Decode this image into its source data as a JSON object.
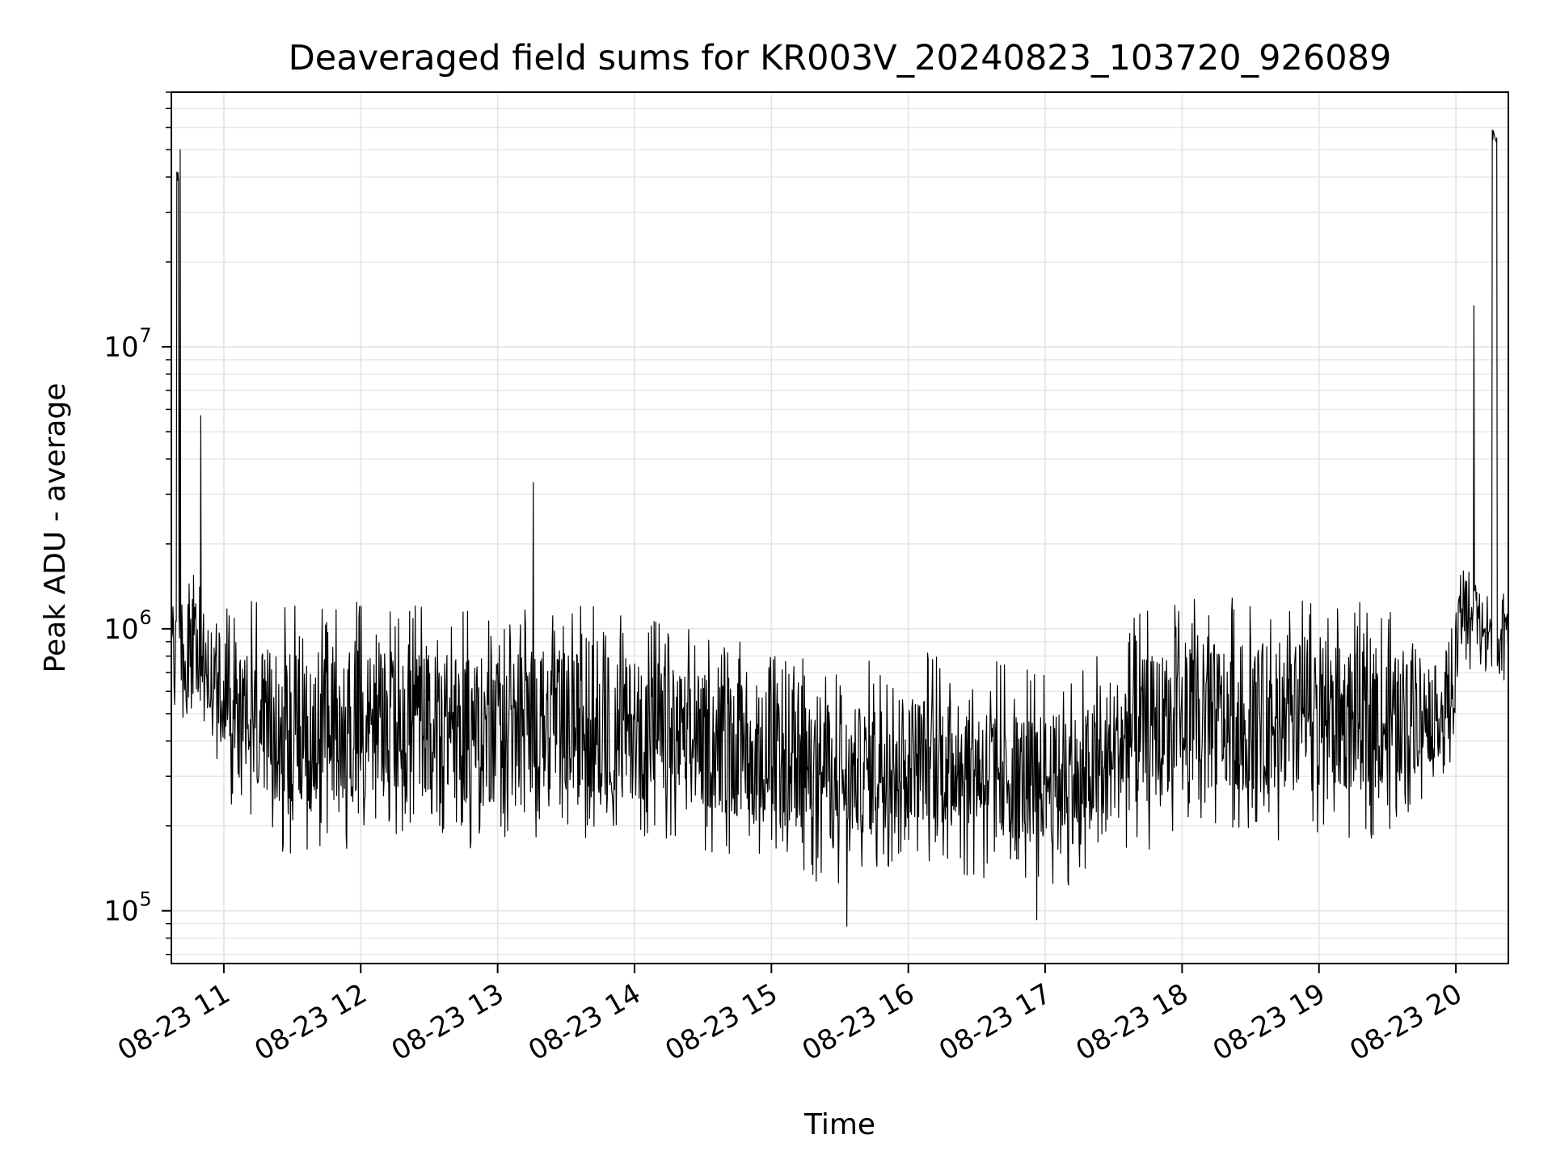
{
  "chart_data": {
    "type": "line",
    "title": "Deaveraged field sums for KR003V_20240823_103720_926089",
    "xlabel": "Time",
    "ylabel": "Peak ADU - average",
    "yscale": "log",
    "ylim": [
      65000,
      80000000
    ],
    "xlim": [
      "08-23 10:37",
      "08-23 20:23"
    ],
    "grid": true,
    "line_color": "#000000",
    "grid_color": "#e6e6e6",
    "x_ticks": [
      "08-23 11",
      "08-23 12",
      "08-23 13",
      "08-23 14",
      "08-23 15",
      "08-23 16",
      "08-23 17",
      "08-23 18",
      "08-23 19",
      "08-23 20"
    ],
    "y_ticks": [
      {
        "base": "10",
        "exp": "5",
        "value": 100000
      },
      {
        "base": "10",
        "exp": "6",
        "value": 1000000
      },
      {
        "base": "10",
        "exp": "7",
        "value": 10000000
      }
    ],
    "series": [
      {
        "time_unit": "hours of 08-23",
        "x_start": 10.62,
        "x_end": 20.38,
        "samples": 2400,
        "envelope": [
          {
            "x": 10.62,
            "low": 550000,
            "high": 1200000
          },
          {
            "x": 10.75,
            "low": 450000,
            "high": 1600000
          },
          {
            "x": 10.9,
            "low": 400000,
            "high": 1500000
          },
          {
            "x": 11.0,
            "low": 250000,
            "high": 1300000
          },
          {
            "x": 11.2,
            "low": 170000,
            "high": 1300000
          },
          {
            "x": 11.6,
            "low": 150000,
            "high": 1200000
          },
          {
            "x": 12.0,
            "low": 170000,
            "high": 1250000
          },
          {
            "x": 12.5,
            "low": 170000,
            "high": 1250000
          },
          {
            "x": 12.9,
            "low": 150000,
            "high": 1200000
          },
          {
            "x": 13.1,
            "low": 180000,
            "high": 1250000
          },
          {
            "x": 13.5,
            "low": 170000,
            "high": 1250000
          },
          {
            "x": 14.0,
            "low": 170000,
            "high": 1150000
          },
          {
            "x": 14.5,
            "low": 160000,
            "high": 1000000
          },
          {
            "x": 15.0,
            "low": 140000,
            "high": 850000
          },
          {
            "x": 15.5,
            "low": 120000,
            "high": 720000
          },
          {
            "x": 16.0,
            "low": 150000,
            "high": 850000
          },
          {
            "x": 16.5,
            "low": 130000,
            "high": 800000
          },
          {
            "x": 17.0,
            "low": 120000,
            "high": 700000
          },
          {
            "x": 17.3,
            "low": 120000,
            "high": 750000
          },
          {
            "x": 17.6,
            "low": 150000,
            "high": 1100000
          },
          {
            "x": 18.0,
            "low": 180000,
            "high": 1350000
          },
          {
            "x": 18.5,
            "low": 170000,
            "high": 1350000
          },
          {
            "x": 19.0,
            "low": 180000,
            "high": 1300000
          },
          {
            "x": 19.5,
            "low": 180000,
            "high": 1200000
          },
          {
            "x": 19.95,
            "low": 300000,
            "high": 900000
          },
          {
            "x": 20.05,
            "low": 700000,
            "high": 2000000
          },
          {
            "x": 20.38,
            "low": 600000,
            "high": 1300000
          }
        ],
        "spikes": [
          {
            "x": 10.66,
            "y": 42000000
          },
          {
            "x": 10.68,
            "y": 50000000
          },
          {
            "x": 10.83,
            "y": 5700000
          },
          {
            "x": 13.26,
            "y": 3300000
          },
          {
            "x": 15.55,
            "y": 88000
          },
          {
            "x": 16.94,
            "y": 93000
          },
          {
            "x": 20.13,
            "y": 14000000
          },
          {
            "x": 20.27,
            "y": 62000000
          },
          {
            "x": 20.3,
            "y": 55000000
          }
        ]
      }
    ]
  }
}
